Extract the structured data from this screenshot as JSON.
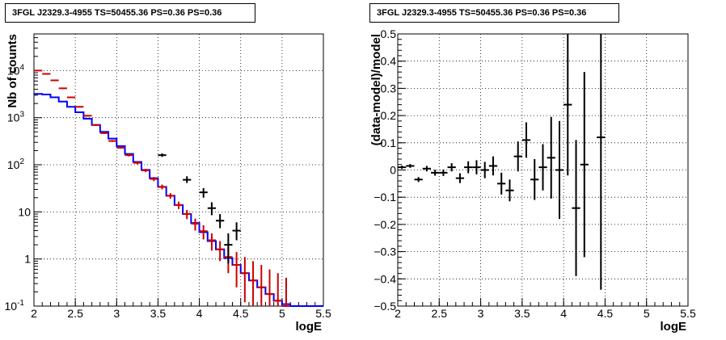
{
  "chart_data": [
    {
      "type": "line",
      "title": "3FGL J2329.3-4955 TS=50455.36 PS=0.36 PS=0.36",
      "xlabel": "logE",
      "ylabel": "Nb of counts",
      "yscale": "log",
      "xlim": [
        2,
        5.5
      ],
      "ylim": [
        0.1,
        60000
      ],
      "xticks": [
        "2",
        "2.5",
        "3",
        "3.5",
        "4",
        "4.5",
        "5",
        "5.5"
      ],
      "yticks": [
        {
          "v": 0.1,
          "base": "10",
          "exp": "-1"
        },
        {
          "v": 1,
          "base": "1",
          "exp": ""
        },
        {
          "v": 10,
          "base": "10",
          "exp": ""
        },
        {
          "v": 100,
          "base": "10",
          "exp": "2"
        },
        {
          "v": 1000,
          "base": "10",
          "exp": "3"
        },
        {
          "v": 10000,
          "base": "10",
          "exp": "4"
        }
      ],
      "grid": true,
      "series": [
        {
          "color": "#0000ff",
          "style": "step",
          "x": [
            2.05,
            2.15,
            2.25,
            2.35,
            2.45,
            2.55,
            2.65,
            2.75,
            2.85,
            2.95,
            3.05,
            3.15,
            3.25,
            3.35,
            3.45,
            3.55,
            3.65,
            3.75,
            3.85,
            3.95,
            4.05,
            4.15,
            4.25,
            4.35,
            4.45,
            4.55,
            4.65,
            4.75,
            4.85,
            4.95,
            5.05,
            5.15,
            5.25,
            5.35,
            5.45
          ],
          "y": [
            3200,
            3100,
            2700,
            2200,
            1700,
            1300,
            950,
            700,
            500,
            360,
            250,
            170,
            115,
            78,
            52,
            34,
            22,
            14,
            9,
            5.8,
            3.7,
            2.4,
            1.6,
            1.05,
            0.75,
            0.5,
            0.35,
            0.25,
            0.18,
            0.13,
            0.11,
            0.1,
            0.1,
            0.1,
            0.1
          ]
        },
        {
          "color": "#cc0000",
          "style": "errorbar",
          "x": [
            2.05,
            2.15,
            2.25,
            2.35,
            2.45,
            2.55,
            2.65,
            2.75,
            2.85,
            2.95,
            3.05,
            3.15,
            3.25,
            3.35,
            3.45,
            3.55,
            3.65,
            3.75,
            3.85,
            3.95,
            4.05,
            4.15,
            4.25,
            4.35,
            4.45,
            4.55,
            4.65,
            4.75,
            4.85,
            4.95,
            5.05
          ],
          "y": [
            10000,
            8500,
            6200,
            4200,
            2700,
            1700,
            1100,
            700,
            470,
            320,
            230,
            160,
            110,
            76,
            50,
            34,
            22,
            14,
            9,
            5.6,
            3.9,
            2.5,
            1.6,
            1.1,
            0.75,
            0.5,
            0.35,
            0.25,
            0.18,
            0.13,
            0.1
          ],
          "yerr_hi": [
            10300,
            8700,
            6400,
            4350,
            2800,
            1760,
            1140,
            730,
            490,
            335,
            240,
            170,
            118,
            82,
            55,
            38,
            25,
            16.5,
            11,
            7.2,
            5.2,
            3.5,
            2.4,
            1.8,
            1.4,
            1.1,
            0.9,
            0.75,
            0.6,
            0.5,
            0.4
          ],
          "yerr_lo": [
            9800,
            8300,
            6050,
            4050,
            2600,
            1640,
            1060,
            670,
            450,
            305,
            220,
            150,
            102,
            70,
            45,
            30,
            19,
            11.5,
            7,
            4,
            2.6,
            1.5,
            0.9,
            0.5,
            0.25,
            0.12,
            0.1,
            0.1,
            0.1,
            0.1,
            0.1
          ]
        },
        {
          "color": "#000000",
          "style": "errorbar",
          "x": [
            3.55,
            3.85,
            4.05,
            4.15,
            4.25,
            4.35,
            4.45
          ],
          "y": [
            160,
            48,
            26,
            12,
            6.5,
            2,
            4
          ],
          "yerr_hi": [
            175,
            57,
            32,
            16,
            9,
            3.5,
            6
          ],
          "yerr_lo": [
            147,
            41,
            20,
            8.5,
            4.5,
            0.8,
            2.5
          ]
        }
      ]
    },
    {
      "type": "scatter",
      "title": "3FGL J2329.3-4955 TS=50455.36 PS=0.36 PS=0.36",
      "xlabel": "logE",
      "ylabel": "(data-model)/model",
      "xlim": [
        2,
        5.5
      ],
      "ylim": [
        -0.5,
        0.5
      ],
      "xticks": [
        "2",
        "2.5",
        "3",
        "3.5",
        "4",
        "4.5",
        "5",
        "5.5"
      ],
      "yticks": [
        "-0.5",
        "-0.4",
        "-0.3",
        "-0.2",
        "-0.1",
        "0",
        "0.1",
        "0.2",
        "0.3",
        "0.4",
        "0.5"
      ],
      "grid": true,
      "series": [
        {
          "color": "#000000",
          "style": "errorbar",
          "x": [
            2.05,
            2.15,
            2.25,
            2.35,
            2.45,
            2.55,
            2.65,
            2.75,
            2.85,
            2.95,
            3.05,
            3.15,
            3.25,
            3.35,
            3.45,
            3.55,
            3.65,
            3.75,
            3.85,
            3.95,
            4.05,
            4.15,
            4.25,
            4.45
          ],
          "y": [
            0.01,
            0.015,
            -0.035,
            0.005,
            -0.01,
            -0.01,
            0.01,
            -0.03,
            0.01,
            0.01,
            0.0,
            0.015,
            -0.05,
            -0.075,
            0.05,
            0.11,
            -0.035,
            0.01,
            0.045,
            0.0,
            0.24,
            -0.14,
            0.02,
            0.12
          ],
          "yerr": [
            0.006,
            0.007,
            0.009,
            0.01,
            0.011,
            0.012,
            0.015,
            0.018,
            0.022,
            0.026,
            0.03,
            0.035,
            0.04,
            0.04,
            0.055,
            0.065,
            0.075,
            0.085,
            0.15,
            0.18,
            0.26,
            0.25,
            0.34,
            0.56
          ]
        }
      ]
    }
  ]
}
